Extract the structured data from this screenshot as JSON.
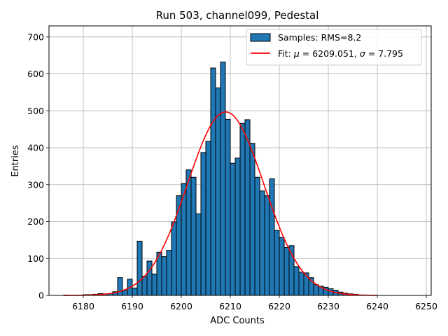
{
  "chart_data": {
    "type": "histogram",
    "title": "Run 503, channel099, Pedestal",
    "xlabel": "ADC Counts",
    "ylabel": "Entries",
    "xlim": [
      6173,
      6251
    ],
    "ylim": [
      0,
      730
    ],
    "xticks": [
      6180,
      6190,
      6200,
      6210,
      6220,
      6230,
      6240,
      6250
    ],
    "yticks": [
      0,
      100,
      200,
      300,
      400,
      500,
      600,
      700
    ],
    "grid": true,
    "bin_width": 1,
    "bins_start": [
      6176,
      6177,
      6178,
      6179,
      6180,
      6181,
      6182,
      6183,
      6184,
      6185,
      6186,
      6187,
      6188,
      6189,
      6190,
      6191,
      6192,
      6193,
      6194,
      6195,
      6196,
      6197,
      6198,
      6199,
      6200,
      6201,
      6202,
      6203,
      6204,
      6205,
      6206,
      6207,
      6208,
      6209,
      6210,
      6211,
      6212,
      6213,
      6214,
      6215,
      6216,
      6217,
      6218,
      6219,
      6220,
      6221,
      6222,
      6223,
      6224,
      6225,
      6226,
      6227,
      6228,
      6229,
      6230,
      6231,
      6232,
      6233,
      6234,
      6235,
      6236,
      6237,
      6238,
      6239
    ],
    "counts": [
      1,
      0,
      0,
      1,
      2,
      2,
      3,
      5,
      4,
      5,
      10,
      48,
      13,
      44,
      20,
      147,
      52,
      93,
      58,
      117,
      105,
      122,
      199,
      270,
      303,
      340,
      320,
      221,
      387,
      417,
      616,
      562,
      632,
      477,
      358,
      372,
      466,
      476,
      412,
      320,
      283,
      270,
      316,
      176,
      157,
      130,
      135,
      78,
      63,
      61,
      48,
      29,
      25,
      22,
      18,
      14,
      9,
      6,
      4,
      3,
      1,
      1,
      1,
      0
    ],
    "fit": {
      "mu": 6209.051,
      "sigma": 7.795,
      "amplitude": 497,
      "x_range": [
        6176,
        6240
      ],
      "color": "#ff0000"
    },
    "bar_color": "#1f77b4",
    "legend": {
      "location": "top-right",
      "samples_label": "Samples: RMS=8.2",
      "fit_label_prefix": "Fit: ",
      "mu_symbol": "μ",
      "fit_mu_text": " = 6209.051, ",
      "sigma_symbol": "σ",
      "fit_sigma_text": " = 7.795"
    }
  }
}
